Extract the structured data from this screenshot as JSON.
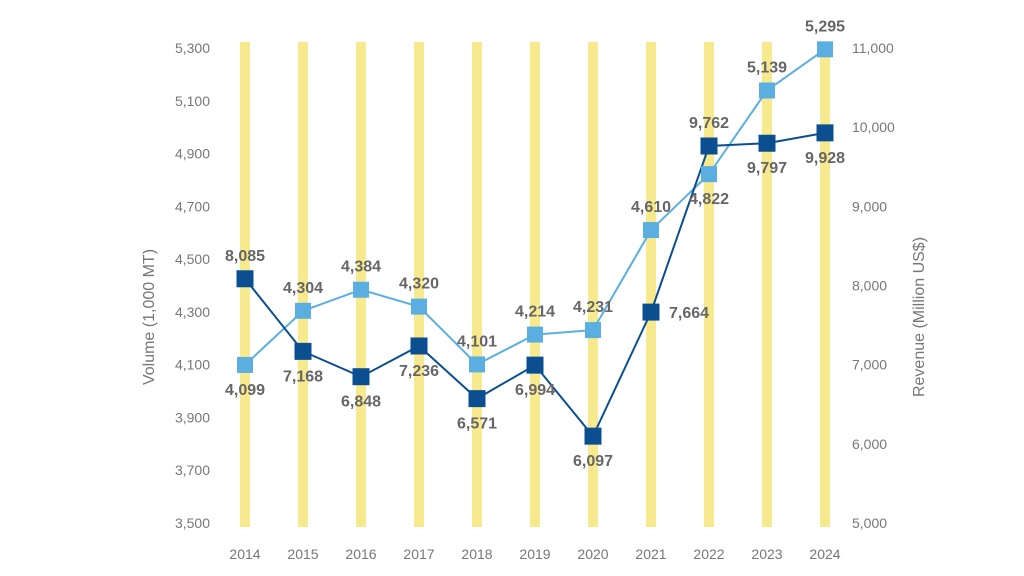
{
  "chart_data": {
    "type": "line",
    "x": [
      "2014",
      "2015",
      "2016",
      "2017",
      "2018",
      "2019",
      "2020",
      "2021",
      "2022",
      "2023",
      "2024"
    ],
    "series": [
      {
        "axis": "left",
        "color": "#5aaee0",
        "marker": "square",
        "values": [
          4099,
          4304,
          4384,
          4320,
          4101,
          4214,
          4231,
          4610,
          4822,
          5139,
          5295
        ],
        "labels": [
          "4,099",
          "4,304",
          "4,384",
          "4,320",
          "4,101",
          "4,214",
          "4,231",
          "4,610",
          "4,822",
          "5,139",
          "5,295"
        ]
      },
      {
        "axis": "right",
        "color": "#0b4f91",
        "marker": "square",
        "values": [
          8085,
          7168,
          6848,
          7236,
          6571,
          6994,
          6097,
          7664,
          9762,
          9797,
          9928
        ],
        "labels": [
          "8,085",
          "7,168",
          "6,848",
          "7,236",
          "6,571",
          "6,994",
          "6,097",
          "7,664",
          "9,762",
          "9,797",
          "9,928"
        ]
      }
    ],
    "yleft": {
      "label": "Volume (1,000 MT)",
      "ylim": [
        3500,
        5300
      ],
      "ticks": [
        "3,500",
        "3,700",
        "3,900",
        "4,100",
        "4,300",
        "4,500",
        "4,700",
        "4,900",
        "5,100",
        "5,300"
      ],
      "tick_values": [
        3500,
        3700,
        3900,
        4100,
        4300,
        4500,
        4700,
        4900,
        5100,
        5300
      ]
    },
    "yright": {
      "label": "Revenue (Million US$)",
      "ylim": [
        5000,
        11000
      ],
      "ticks": [
        "5,000",
        "6,000",
        "7,000",
        "8,000",
        "9,000",
        "10,000",
        "11,000"
      ],
      "tick_values": [
        5000,
        6000,
        7000,
        8000,
        9000,
        10000,
        11000
      ]
    },
    "background_bars_color": "#f7e98e",
    "grid": false,
    "legend": "none"
  }
}
